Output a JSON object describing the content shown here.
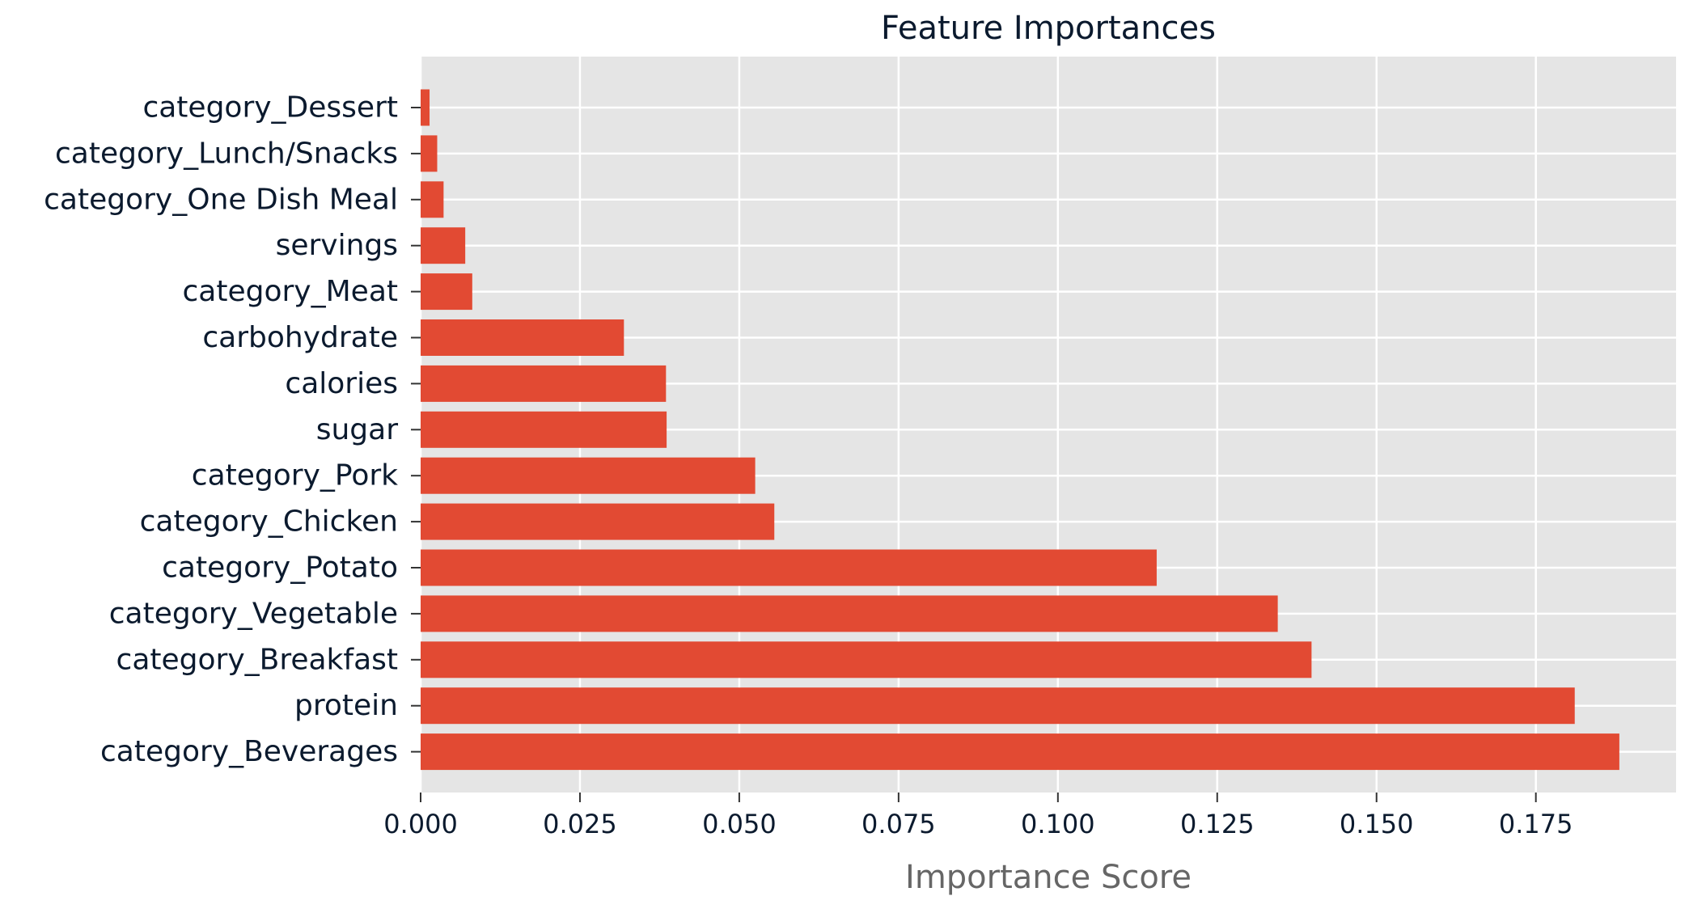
{
  "chart_data": {
    "type": "bar",
    "orientation": "horizontal",
    "title": "Feature Importances",
    "xlabel": "Importance Score",
    "ylabel": "",
    "xlim": [
      0,
      0.197
    ],
    "x_ticks": [
      "0.000",
      "0.025",
      "0.050",
      "0.075",
      "0.100",
      "0.125",
      "0.150",
      "0.175"
    ],
    "x_tick_values": [
      0,
      0.025,
      0.05,
      0.075,
      0.1,
      0.125,
      0.15,
      0.175
    ],
    "grid": true,
    "legend": "none",
    "colors": {
      "bar": "#e24a33",
      "panel": "#e5e5e5",
      "grid": "#ffffff",
      "text": "#0b1a2e",
      "xlabel": "#666666"
    },
    "categories": [
      "category_Dessert",
      "category_Lunch/Snacks",
      "category_One Dish Meal",
      "servings",
      "category_Meat",
      "carbohydrate",
      "calories",
      "sugar",
      "category_Pork",
      "category_Chicken",
      "category_Potato",
      "category_Vegetable",
      "category_Breakfast",
      "protein",
      "category_Beverages"
    ],
    "values": [
      0.0014,
      0.0026,
      0.0036,
      0.007,
      0.0081,
      0.0319,
      0.0385,
      0.0386,
      0.0525,
      0.0555,
      0.1155,
      0.1345,
      0.1398,
      0.1811,
      0.1881
    ]
  }
}
